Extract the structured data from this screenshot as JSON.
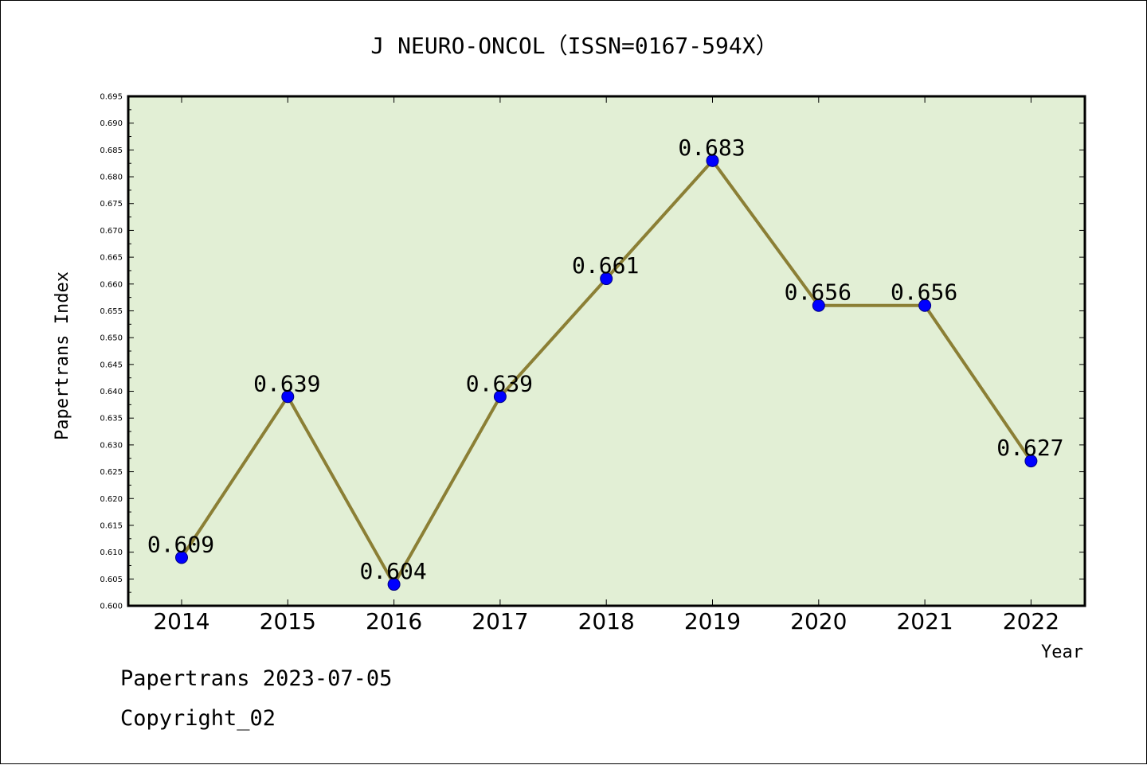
{
  "chart_data": {
    "type": "line",
    "title": "J NEURO-ONCOL（ISSN=0167-594X）",
    "xlabel": "Year",
    "ylabel": "Papertrans Index",
    "categories": [
      "2014",
      "2015",
      "2016",
      "2017",
      "2018",
      "2019",
      "2020",
      "2021",
      "2022"
    ],
    "series": [
      {
        "values": [
          0.609,
          0.639,
          0.604,
          0.639,
          0.661,
          0.683,
          0.656,
          0.656,
          0.627
        ],
        "labels": [
          "0.609",
          "0.639",
          "0.604",
          "0.639",
          "0.661",
          "0.683",
          "0.656",
          "0.656",
          "0.627"
        ]
      }
    ],
    "ylim": [
      0.6,
      0.695
    ],
    "yticks": [
      "0.600",
      "0.605",
      "0.610",
      "0.615",
      "0.620",
      "0.625",
      "0.630",
      "0.635",
      "0.640",
      "0.645",
      "0.650",
      "0.655",
      "0.660",
      "0.665",
      "0.670",
      "0.675",
      "0.680",
      "0.685",
      "0.690",
      "0.695"
    ],
    "grid": false,
    "legend": "none"
  },
  "colors": {
    "plot_background": "#e2efd5",
    "line": "#8b7f35",
    "marker": "#0000ff",
    "frame": "#000000"
  },
  "footer": {
    "date_line": "Papertrans 2023-07-05",
    "copyright_line": "Copyright_02"
  }
}
